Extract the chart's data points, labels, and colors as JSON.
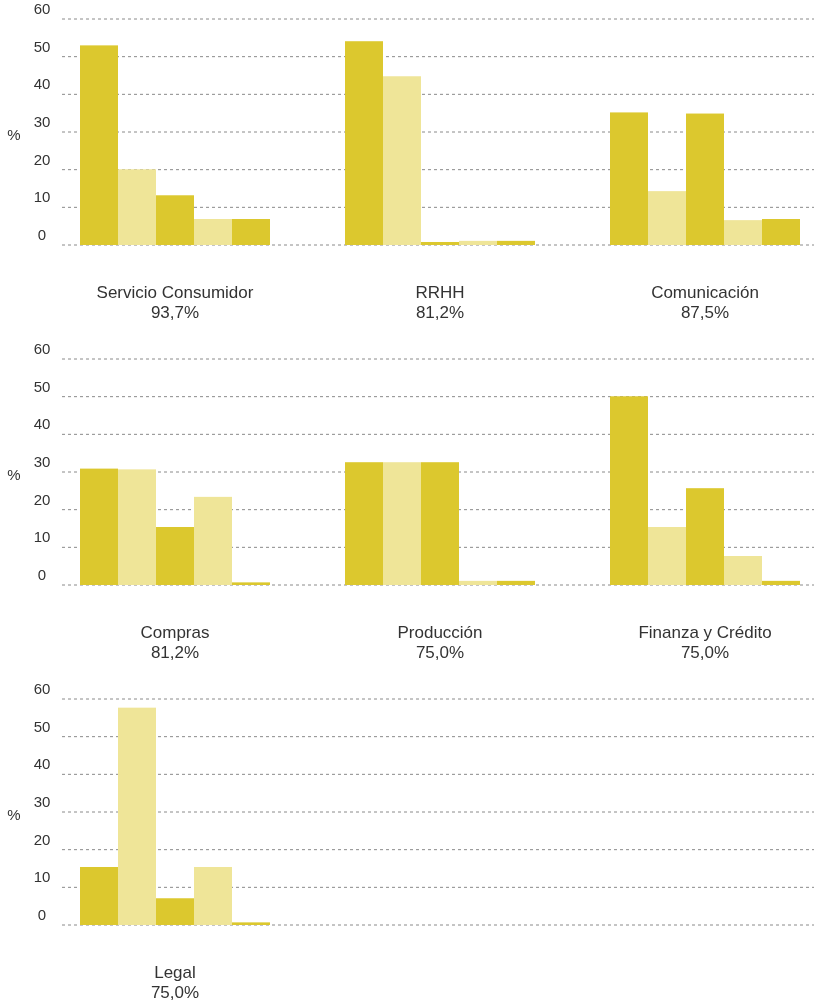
{
  "chart_data": [
    {
      "type": "bar",
      "ylabel": "%",
      "categories": [
        "Servicio Consumidor",
        "RRHH",
        "Comunicación"
      ],
      "ylim": [
        0,
        60
      ],
      "yticks": [
        0,
        10,
        20,
        30,
        40,
        50,
        60
      ],
      "grid": "y",
      "series": [
        {
          "color": "#dcc82e",
          "values": [
            53.0,
            54.1,
            35.2
          ]
        },
        {
          "color": "#efe598",
          "values": [
            20.1,
            44.8,
            14.3
          ]
        },
        {
          "color": "#dcc82e",
          "values": [
            13.2,
            0.8,
            34.9
          ]
        },
        {
          "color": "#efe598",
          "values": [
            6.9,
            1.1,
            6.6
          ]
        },
        {
          "color": "#dcc82e",
          "values": [
            6.9,
            1.1,
            6.9
          ]
        }
      ],
      "annotations": [
        "93,7%",
        "81,2%",
        "87,5%"
      ]
    },
    {
      "type": "bar",
      "ylabel": "%",
      "categories": [
        "Compras",
        "Producción",
        "Finanza y Crédito"
      ],
      "ylim": [
        0,
        60
      ],
      "yticks": [
        0,
        10,
        20,
        30,
        40,
        50,
        60
      ],
      "grid": "y",
      "series": [
        {
          "color": "#dcc82e",
          "values": [
            30.9,
            32.6,
            50.1
          ]
        },
        {
          "color": "#efe598",
          "values": [
            30.7,
            32.6,
            15.4
          ]
        },
        {
          "color": "#dcc82e",
          "values": [
            15.4,
            32.6,
            25.7
          ]
        },
        {
          "color": "#efe598",
          "values": [
            23.4,
            1.1,
            7.7
          ]
        },
        {
          "color": "#dcc82e",
          "values": [
            0.7,
            1.1,
            1.1
          ]
        }
      ],
      "annotations": [
        "81,2%",
        "75,0%",
        "75,0%"
      ]
    },
    {
      "type": "bar",
      "ylabel": "%",
      "categories": [
        "Legal",
        null,
        null
      ],
      "ylim": [
        0,
        60
      ],
      "yticks": [
        0,
        10,
        20,
        30,
        40,
        50,
        60
      ],
      "grid": "y",
      "series": [
        {
          "color": "#dcc82e",
          "values": [
            15.4,
            null,
            null
          ]
        },
        {
          "color": "#efe598",
          "values": [
            57.7,
            null,
            null
          ]
        },
        {
          "color": "#dcc82e",
          "values": [
            7.1,
            null,
            null
          ]
        },
        {
          "color": "#efe598",
          "values": [
            15.4,
            null,
            null
          ]
        },
        {
          "color": "#dcc82e",
          "values": [
            0.7,
            null,
            null
          ]
        }
      ],
      "annotations": [
        "75,0%"
      ]
    }
  ]
}
